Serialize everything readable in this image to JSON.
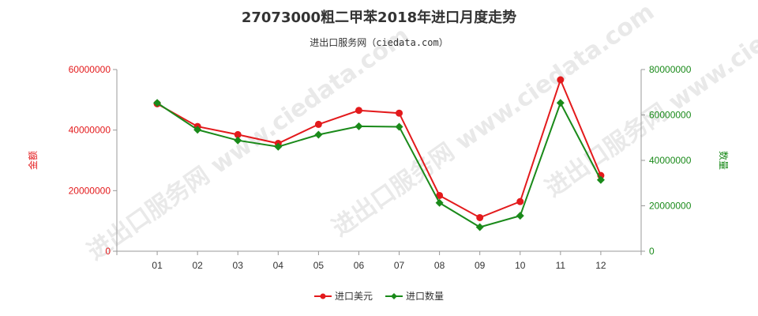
{
  "chart_data": {
    "type": "line",
    "title": "27073000粗二甲苯2018年进口月度走势",
    "subtitle": "进出口服务网（ciedata.com）",
    "watermark": "进出口服务网 www.ciedata.com",
    "categories": [
      "01",
      "02",
      "03",
      "04",
      "05",
      "06",
      "07",
      "08",
      "09",
      "10",
      "11",
      "12"
    ],
    "y_left": {
      "label": "金额",
      "range": [
        0,
        60000000
      ],
      "ticks": [
        0,
        20000000,
        40000000,
        60000000
      ],
      "tick_labels": [
        "0",
        "20000000",
        "40000000",
        "60000000"
      ],
      "color": "#e31a1c"
    },
    "y_right": {
      "label": "数量",
      "range": [
        0,
        80000000
      ],
      "ticks": [
        0,
        20000000,
        40000000,
        60000000,
        80000000
      ],
      "tick_labels": [
        "0",
        "20000000",
        "40000000",
        "60000000",
        "80000000"
      ],
      "color": "#1a8a1a"
    },
    "series": [
      {
        "name": "进口美元",
        "axis": "left",
        "color": "#e31a1c",
        "values": [
          48700000,
          41200000,
          38500000,
          35600000,
          41900000,
          46500000,
          45600000,
          18400000,
          11100000,
          16400000,
          56600000,
          25000000
        ]
      },
      {
        "name": "进口数量",
        "axis": "right",
        "color": "#1a8a1a",
        "values": [
          65300000,
          53500000,
          48800000,
          46000000,
          51300000,
          55000000,
          54800000,
          21300000,
          10600000,
          15600000,
          65300000,
          31400000
        ]
      }
    ],
    "legend_position": "bottom-center",
    "grid": false
  }
}
